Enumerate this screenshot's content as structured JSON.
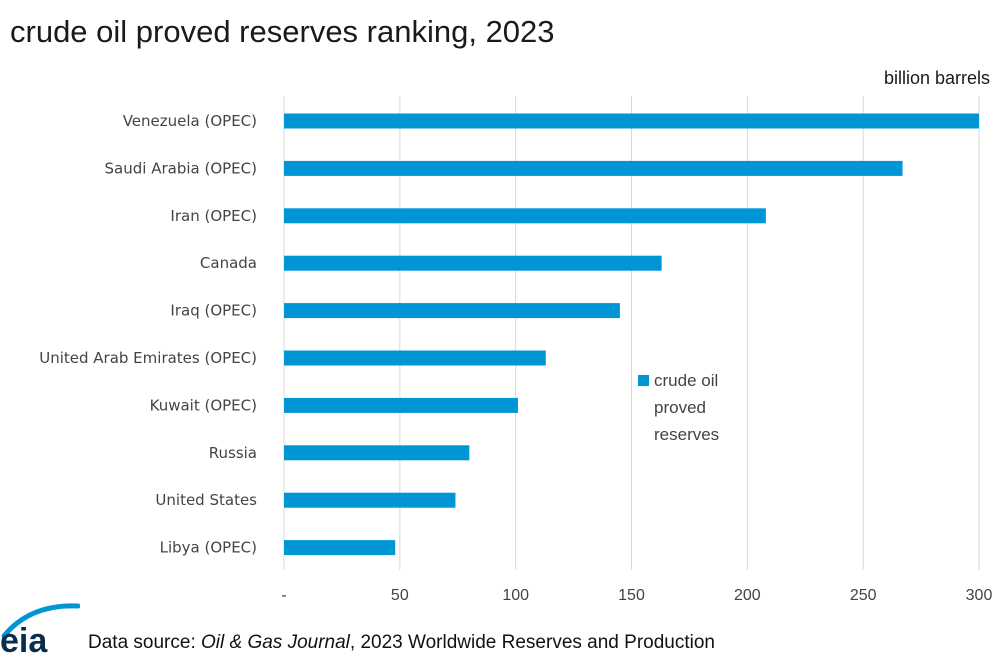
{
  "colors": {
    "bar": "#0096d6",
    "grid": "#d9d9d9",
    "logo": "#0096d6"
  },
  "logo": {
    "text": "eia",
    "icon": "eia-logo-icon"
  },
  "footer": {
    "prefix": "Data source: ",
    "source_italic": "Oil & Gas Journal",
    "suffix": ", 2023 Worldwide Reserves and Production"
  },
  "chart_data": {
    "type": "bar",
    "orientation": "horizontal",
    "title": "crude oil proved reserves ranking, 2023",
    "unit_label": "billion barrels",
    "categories": [
      "Venezuela (OPEC)",
      "Saudi Arabia (OPEC)",
      "Iran (OPEC)",
      "Canada",
      "Iraq (OPEC)",
      "United Arab Emirates (OPEC)",
      "Kuwait (OPEC)",
      "Russia",
      "United States",
      "Libya (OPEC)"
    ],
    "series": [
      {
        "name": "crude oil proved reserves",
        "legend_lines": [
          "crude oil",
          "proved",
          "reserves"
        ],
        "values": [
          303,
          267,
          208,
          163,
          145,
          113,
          101,
          80,
          74,
          48
        ]
      }
    ],
    "xlim": [
      0,
      300
    ],
    "x_ticks": [
      0,
      50,
      100,
      150,
      200,
      250,
      300
    ],
    "x_tick_labels": [
      "-",
      "50",
      "100",
      "150",
      "200",
      "250",
      "300"
    ],
    "grid": "vertical",
    "legend_position": "center-right"
  }
}
